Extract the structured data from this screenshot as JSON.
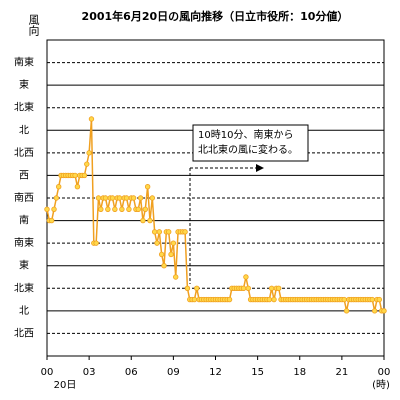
{
  "chart_data": {
    "type": "line",
    "title": "2001年6月20日の風向推移（日立市役所：10分値）",
    "ylabel": "風向",
    "xlabel": "(時)",
    "date_label": "20日",
    "annotation": [
      "10時10分、南東から",
      "北北東の風に変わる。"
    ],
    "xlim": [
      0,
      1440
    ],
    "xticks": [
      {
        "value": 0,
        "label": "00"
      },
      {
        "value": 180,
        "label": "03"
      },
      {
        "value": 360,
        "label": "06"
      },
      {
        "value": 540,
        "label": "09"
      },
      {
        "value": 720,
        "label": "12"
      },
      {
        "value": 900,
        "label": "15"
      },
      {
        "value": 1080,
        "label": "18"
      },
      {
        "value": 1260,
        "label": "21"
      },
      {
        "value": 1440,
        "label": "00"
      }
    ],
    "ylim": [
      0,
      14
    ],
    "yticks": [
      {
        "value": 1,
        "label": "北西"
      },
      {
        "value": 2,
        "label": "北"
      },
      {
        "value": 3,
        "label": "北東"
      },
      {
        "value": 4,
        "label": "東"
      },
      {
        "value": 5,
        "label": "南東"
      },
      {
        "value": 6,
        "label": "南"
      },
      {
        "value": 7,
        "label": "南西"
      },
      {
        "value": 8,
        "label": "西"
      },
      {
        "value": 9,
        "label": "北西"
      },
      {
        "value": 10,
        "label": "北"
      },
      {
        "value": 11,
        "label": "北東"
      },
      {
        "value": 12,
        "label": "東"
      },
      {
        "value": 13,
        "label": "南東"
      }
    ],
    "grid": true,
    "x": [
      0,
      10,
      20,
      30,
      40,
      50,
      60,
      70,
      80,
      90,
      100,
      110,
      120,
      130,
      140,
      150,
      160,
      170,
      180,
      190,
      200,
      210,
      220,
      230,
      240,
      250,
      260,
      270,
      280,
      290,
      300,
      310,
      320,
      330,
      340,
      350,
      360,
      370,
      380,
      390,
      400,
      410,
      420,
      430,
      440,
      450,
      460,
      470,
      480,
      490,
      500,
      510,
      520,
      530,
      540,
      550,
      560,
      570,
      580,
      590,
      600,
      610,
      620,
      630,
      640,
      650,
      660,
      670,
      680,
      690,
      700,
      710,
      720,
      730,
      740,
      750,
      760,
      770,
      780,
      790,
      800,
      810,
      820,
      830,
      840,
      850,
      860,
      870,
      880,
      890,
      900,
      910,
      920,
      930,
      940,
      950,
      960,
      970,
      980,
      990,
      1000,
      1010,
      1020,
      1030,
      1040,
      1050,
      1060,
      1070,
      1080,
      1090,
      1100,
      1110,
      1120,
      1130,
      1140,
      1150,
      1160,
      1170,
      1180,
      1190,
      1200,
      1210,
      1220,
      1230,
      1240,
      1250,
      1260,
      1270,
      1280,
      1290,
      1300,
      1310,
      1320,
      1330,
      1340,
      1350,
      1360,
      1370,
      1380,
      1390,
      1400,
      1410,
      1420,
      1430,
      1440
    ],
    "series": [
      {
        "color": "#f0a020",
        "marker_color": "#ffd84a",
        "values": [
          6.5,
          6,
          6,
          6.5,
          7,
          7.5,
          8,
          8,
          8,
          8,
          8,
          8,
          8,
          7.5,
          8,
          8,
          8,
          8.5,
          9,
          10.5,
          5,
          5,
          7,
          6.5,
          7,
          7,
          6.5,
          7,
          7,
          6.5,
          7,
          7,
          6.5,
          7,
          7,
          6.5,
          7,
          7,
          6.5,
          6.5,
          7,
          6,
          6.5,
          7.5,
          6,
          7,
          5.5,
          5,
          5.5,
          4.5,
          4,
          5.5,
          5.5,
          4.5,
          5,
          3.5,
          5.5,
          5.5,
          5.5,
          5.5,
          3,
          2.5,
          2.5,
          2.5,
          3,
          2.5,
          2.5,
          2.5,
          2.5,
          2.5,
          2.5,
          2.5,
          2.5,
          2.5,
          2.5,
          2.5,
          2.5,
          2.5,
          2.5,
          3,
          3,
          3,
          3,
          3,
          3,
          3.5,
          3,
          2.5,
          2.5,
          2.5,
          2.5,
          2.5,
          2.5,
          2.5,
          2.5,
          2.5,
          3,
          2.5,
          3,
          3,
          2.5,
          2.5,
          2.5,
          2.5,
          2.5,
          2.5,
          2.5,
          2.5,
          2.5,
          2.5,
          2.5,
          2.5,
          2.5,
          2.5,
          2.5,
          2.5,
          2.5,
          2.5,
          2.5,
          2.5,
          2.5,
          2.5,
          2.5,
          2.5,
          2.5,
          2.5,
          2.5,
          2.5,
          2,
          2.5,
          2.5,
          2.5,
          2.5,
          2.5,
          2.5,
          2.5,
          2.5,
          2.5,
          2.5,
          2.5,
          2,
          2.5,
          2.5,
          2,
          2
        ]
      }
    ]
  }
}
